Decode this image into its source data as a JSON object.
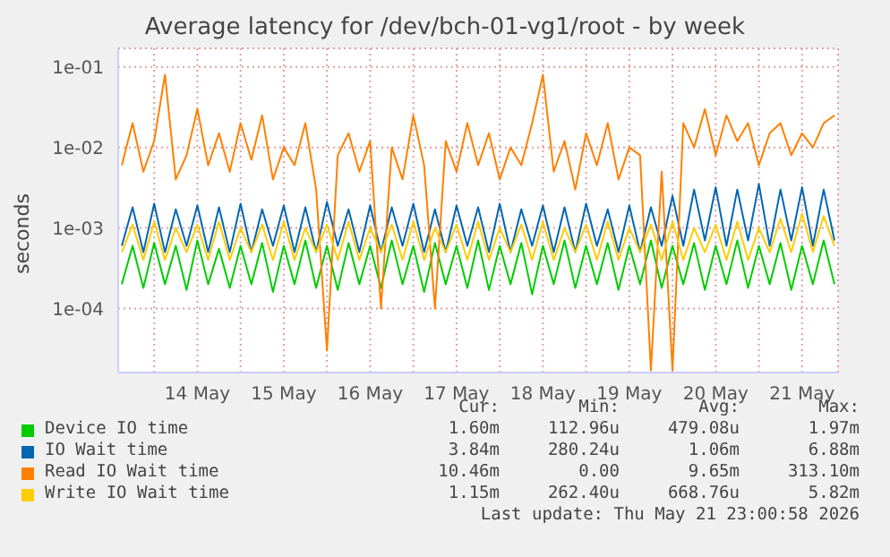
{
  "chart_data": {
    "type": "line",
    "title": "Average latency for /dev/bch-01-vg1/root - by week",
    "ylabel": "seconds",
    "log": true,
    "grid": true,
    "legend": "bottom",
    "marker": "none",
    "line_style": "solid",
    "ylim": [
      1.6e-05,
      0.17
    ],
    "yticks": [
      {
        "value": 0.0001,
        "label": "1e-04"
      },
      {
        "value": 0.001,
        "label": "1e-03"
      },
      {
        "value": 0.01,
        "label": "1e-02"
      },
      {
        "value": 0.1,
        "label": "1e-01"
      }
    ],
    "xlim": [
      "2026-05-13T14:00",
      "2026-05-21T22:00"
    ],
    "xticks": [
      {
        "value": "2026-05-14",
        "label": null
      },
      {
        "value": "2026-05-14T12:00",
        "label": "14 May"
      },
      {
        "value": "2026-05-15",
        "label": null
      },
      {
        "value": "2026-05-15T12:00",
        "label": "15 May"
      },
      {
        "value": "2026-05-16",
        "label": null
      },
      {
        "value": "2026-05-16T12:00",
        "label": "16 May"
      },
      {
        "value": "2026-05-17",
        "label": null
      },
      {
        "value": "2026-05-17T12:00",
        "label": "17 May"
      },
      {
        "value": "2026-05-18",
        "label": null
      },
      {
        "value": "2026-05-18T12:00",
        "label": "18 May"
      },
      {
        "value": "2026-05-19",
        "label": null
      },
      {
        "value": "2026-05-19T12:00",
        "label": "19 May"
      },
      {
        "value": "2026-05-20",
        "label": null
      },
      {
        "value": "2026-05-20T12:00",
        "label": "20 May"
      },
      {
        "value": "2026-05-21",
        "label": null
      },
      {
        "value": "2026-05-21T12:00",
        "label": "21 May"
      }
    ],
    "x": [
      "2026-05-13T15:00",
      "2026-05-13T18:00",
      "2026-05-13T21:00",
      "2026-05-14T00:00",
      "2026-05-14T03:00",
      "2026-05-14T06:00",
      "2026-05-14T09:00",
      "2026-05-14T12:00",
      "2026-05-14T15:00",
      "2026-05-14T18:00",
      "2026-05-14T21:00",
      "2026-05-15T00:00",
      "2026-05-15T03:00",
      "2026-05-15T06:00",
      "2026-05-15T09:00",
      "2026-05-15T12:00",
      "2026-05-15T15:00",
      "2026-05-15T18:00",
      "2026-05-15T21:00",
      "2026-05-16T00:00",
      "2026-05-16T03:00",
      "2026-05-16T06:00",
      "2026-05-16T09:00",
      "2026-05-16T12:00",
      "2026-05-16T15:00",
      "2026-05-16T18:00",
      "2026-05-16T21:00",
      "2026-05-17T00:00",
      "2026-05-17T03:00",
      "2026-05-17T06:00",
      "2026-05-17T09:00",
      "2026-05-17T12:00",
      "2026-05-17T15:00",
      "2026-05-17T18:00",
      "2026-05-17T21:00",
      "2026-05-18T00:00",
      "2026-05-18T03:00",
      "2026-05-18T06:00",
      "2026-05-18T09:00",
      "2026-05-18T12:00",
      "2026-05-18T15:00",
      "2026-05-18T18:00",
      "2026-05-18T21:00",
      "2026-05-19T00:00",
      "2026-05-19T03:00",
      "2026-05-19T06:00",
      "2026-05-19T09:00",
      "2026-05-19T12:00",
      "2026-05-19T15:00",
      "2026-05-19T18:00",
      "2026-05-19T21:00",
      "2026-05-20T00:00",
      "2026-05-20T03:00",
      "2026-05-20T06:00",
      "2026-05-20T09:00",
      "2026-05-20T12:00",
      "2026-05-20T15:00",
      "2026-05-20T18:00",
      "2026-05-20T21:00",
      "2026-05-21T00:00",
      "2026-05-21T03:00",
      "2026-05-21T06:00",
      "2026-05-21T09:00",
      "2026-05-21T12:00",
      "2026-05-21T15:00",
      "2026-05-21T18:00",
      "2026-05-21T21:00"
    ],
    "series": [
      {
        "name": "Device IO time",
        "color": "#00cc00",
        "values": [
          0.0002,
          0.0006,
          0.00018,
          0.00065,
          0.0002,
          0.0006,
          0.00017,
          0.0007,
          0.0002,
          0.00055,
          0.00018,
          0.0006,
          0.0002,
          0.00065,
          0.00016,
          0.0006,
          0.0002,
          0.0007,
          0.00018,
          0.0006,
          0.00017,
          0.00065,
          0.0002,
          0.0006,
          0.00018,
          0.0007,
          0.0002,
          0.0006,
          0.00016,
          0.00065,
          0.0002,
          0.0006,
          0.00018,
          0.0007,
          0.00017,
          0.0006,
          0.0002,
          0.00065,
          0.00015,
          0.0006,
          0.0002,
          0.0007,
          0.00018,
          0.0006,
          0.0002,
          0.00065,
          0.00017,
          0.0006,
          0.0002,
          0.0007,
          0.00018,
          0.0006,
          0.0002,
          0.00065,
          0.00017,
          0.0006,
          0.0002,
          0.0007,
          0.00018,
          0.0006,
          0.0002,
          0.00065,
          0.00017,
          0.0006,
          0.0002,
          0.0007,
          0.0002
        ]
      },
      {
        "name": "IO Wait time",
        "color": "#0066b3",
        "values": [
          0.0006,
          0.0018,
          0.0005,
          0.002,
          0.0005,
          0.0017,
          0.0006,
          0.0019,
          0.0005,
          0.0018,
          0.0005,
          0.002,
          0.0005,
          0.0017,
          0.0006,
          0.0019,
          0.0005,
          0.0018,
          0.0005,
          0.0021,
          0.0006,
          0.0017,
          0.0005,
          0.0019,
          0.0005,
          0.0018,
          0.0006,
          0.002,
          0.0005,
          0.0017,
          0.0005,
          0.0019,
          0.0006,
          0.0018,
          0.0005,
          0.002,
          0.0005,
          0.0017,
          0.0006,
          0.0019,
          0.0005,
          0.0018,
          0.0005,
          0.002,
          0.0006,
          0.0017,
          0.0005,
          0.0019,
          0.0005,
          0.0018,
          0.0006,
          0.0025,
          0.0006,
          0.003,
          0.0007,
          0.0032,
          0.0006,
          0.003,
          0.0007,
          0.0035,
          0.0006,
          0.003,
          0.0007,
          0.0032,
          0.0006,
          0.003,
          0.0007
        ]
      },
      {
        "name": "Read IO Wait time",
        "color": "#ff8000",
        "values": [
          0.006,
          0.02,
          0.005,
          0.012,
          0.08,
          0.004,
          0.008,
          0.03,
          0.006,
          0.015,
          0.005,
          0.02,
          0.007,
          0.025,
          0.004,
          0.01,
          0.006,
          0.02,
          0.003,
          3e-05,
          0.008,
          0.015,
          0.005,
          0.012,
          0.0001,
          0.01,
          0.004,
          0.025,
          0.006,
          0.0001,
          0.012,
          0.005,
          0.02,
          0.006,
          0.015,
          0.004,
          0.01,
          0.006,
          0.02,
          0.08,
          0.005,
          0.012,
          0.003,
          0.015,
          0.006,
          0.02,
          0.004,
          0.01,
          0.008,
          1.7e-05,
          0.005,
          1.7e-05,
          0.02,
          0.01,
          0.03,
          0.008,
          0.025,
          0.012,
          0.02,
          0.006,
          0.015,
          0.02,
          0.008,
          0.015,
          0.01,
          0.02,
          0.025
        ]
      },
      {
        "name": "Write IO Wait time",
        "color": "#ffcc00",
        "values": [
          0.0005,
          0.0011,
          0.0004,
          0.0012,
          0.0004,
          0.001,
          0.0005,
          0.0011,
          0.0004,
          0.0012,
          0.0004,
          0.001,
          0.0005,
          0.0011,
          0.0004,
          0.0012,
          0.0004,
          0.001,
          0.0005,
          0.0011,
          0.0004,
          0.0012,
          0.0004,
          0.001,
          0.0005,
          0.0011,
          0.0004,
          0.0012,
          0.0004,
          0.001,
          0.0005,
          0.0011,
          0.0004,
          0.0012,
          0.0004,
          0.001,
          0.0005,
          0.0011,
          0.0004,
          0.0012,
          0.0004,
          0.001,
          0.0005,
          0.0011,
          0.0004,
          0.0012,
          0.0004,
          0.001,
          0.0005,
          0.0011,
          0.0004,
          0.0012,
          0.0004,
          0.001,
          0.0005,
          0.0011,
          0.0004,
          0.0012,
          0.0004,
          0.001,
          0.0005,
          0.0013,
          0.0005,
          0.0015,
          0.0005,
          0.0014,
          0.0006
        ]
      }
    ],
    "annotations": [
      "Cur:",
      "Min:",
      "Avg:",
      "Max:",
      "1.60m",
      "112.96u",
      "479.08u",
      "1.97m",
      "3.84m",
      "280.24u",
      "1.06m",
      "6.88m",
      "10.46m",
      "0.00",
      "9.65m",
      "313.10m",
      "1.15m",
      "262.40u",
      "668.76u",
      "5.82m",
      "Last update: Thu May 21 23:00:58 2026"
    ]
  }
}
